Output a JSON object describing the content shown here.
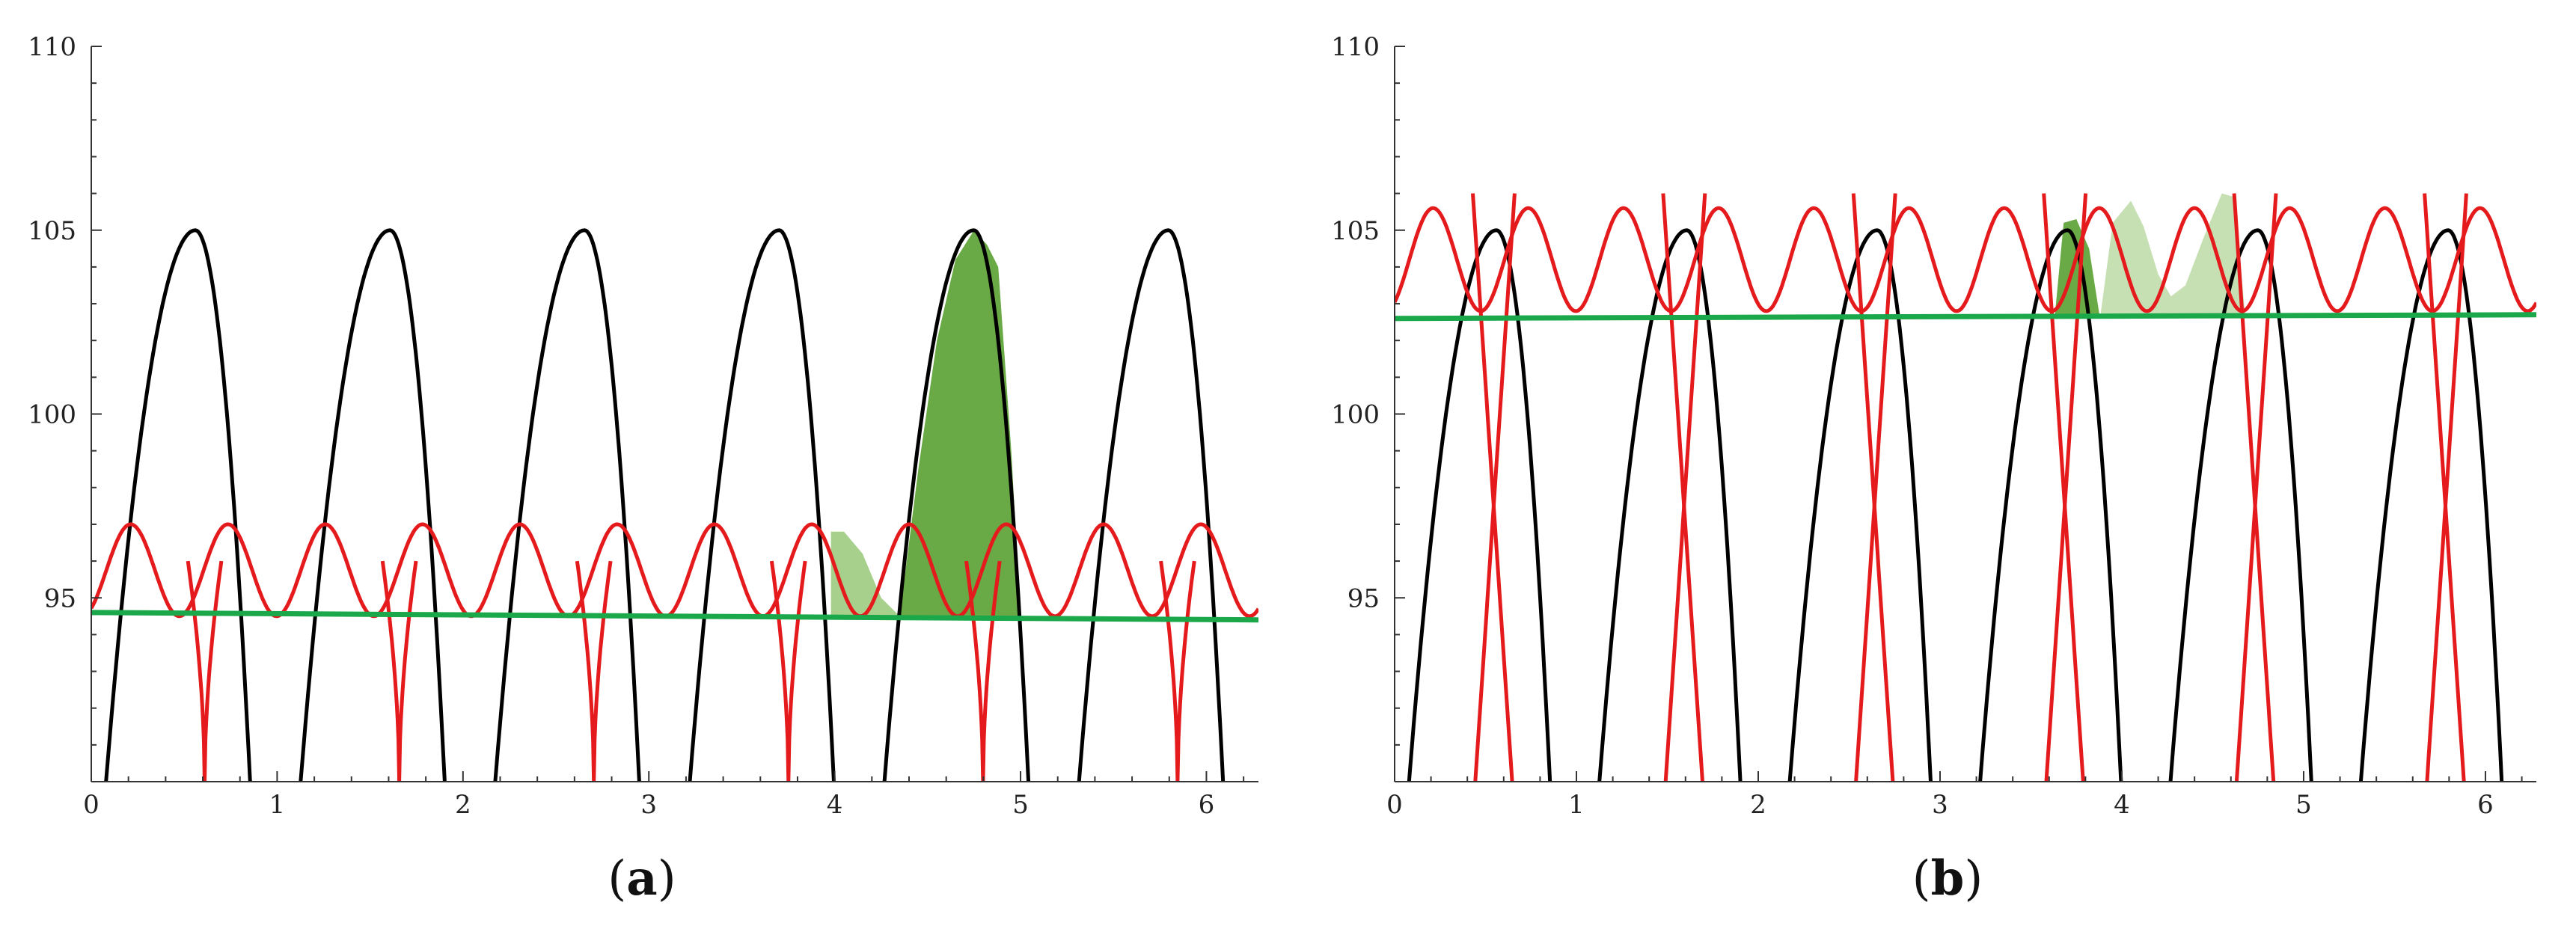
{
  "chart_data": [
    {
      "type": "line",
      "panel_label": "a",
      "xlim": [
        0,
        6.28
      ],
      "ylim": [
        90,
        110
      ],
      "x_ticks": [
        "0",
        "1",
        "2",
        "3",
        "4",
        "5",
        "6"
      ],
      "y_ticks": [
        "95",
        "100",
        "105",
        "110"
      ],
      "series": [
        {
          "color": "#000000",
          "kind": "parabolic_arcs",
          "peak": 105,
          "period": 1.047,
          "first_peak": 0.56,
          "base": 90,
          "half_width": 0.31
        },
        {
          "color": "#e41a1c",
          "kind": "double_hump",
          "top": 97.0,
          "valley": 94.5,
          "period": 1.047,
          "first_cusp": 0.61,
          "cusp_min": 90
        },
        {
          "color": "#1aa84a",
          "kind": "flat_line",
          "y_start": 94.6,
          "y_end": 94.4
        }
      ],
      "shaded_regions": [
        {
          "color": "#a8d08d",
          "x": [
            3.98,
            4.05,
            4.15,
            4.25,
            4.35
          ],
          "y": [
            96.8,
            96.8,
            96.2,
            95.0,
            94.5
          ],
          "base": 94.5
        },
        {
          "color": "#6aaa46",
          "x": [
            4.35,
            4.45,
            4.55,
            4.65,
            4.75,
            4.82,
            4.88,
            4.95,
            5.0
          ],
          "y": [
            94.5,
            98.5,
            102.0,
            104.2,
            105.0,
            104.6,
            104.0,
            99.0,
            94.5
          ],
          "base": 94.5
        }
      ]
    },
    {
      "type": "line",
      "panel_label": "b",
      "xlim": [
        0,
        6.28
      ],
      "ylim": [
        90,
        110
      ],
      "x_ticks": [
        "0",
        "1",
        "2",
        "3",
        "4",
        "5",
        "6"
      ],
      "y_ticks": [
        "95",
        "100",
        "105",
        "110"
      ],
      "series": [
        {
          "color": "#000000",
          "kind": "parabolic_arcs",
          "peak": 105,
          "period": 1.047,
          "first_peak": 0.56,
          "base": 90,
          "half_width": 0.31
        },
        {
          "color": "#e41a1c",
          "kind": "double_hump_with_spikes",
          "top": 105.6,
          "valley": 102.8,
          "period": 1.047
        },
        {
          "color": "#1aa84a",
          "kind": "flat_line",
          "y_start": 102.6,
          "y_end": 102.7
        }
      ],
      "shaded_regions": [
        {
          "color": "#6aaa46",
          "x": [
            3.63,
            3.68,
            3.75,
            3.82,
            3.88
          ],
          "y": [
            102.6,
            105.2,
            105.3,
            104.5,
            102.6
          ],
          "base": 102.6
        },
        {
          "color": "#c6e0b4",
          "x": [
            3.88,
            3.95,
            4.05,
            4.12,
            4.2,
            4.27,
            4.35,
            4.45,
            4.55,
            4.62,
            4.68
          ],
          "y": [
            102.6,
            105.2,
            105.8,
            105.1,
            103.8,
            103.2,
            103.5,
            104.8,
            106.0,
            105.9,
            102.6
          ],
          "base": 102.6
        }
      ]
    }
  ]
}
